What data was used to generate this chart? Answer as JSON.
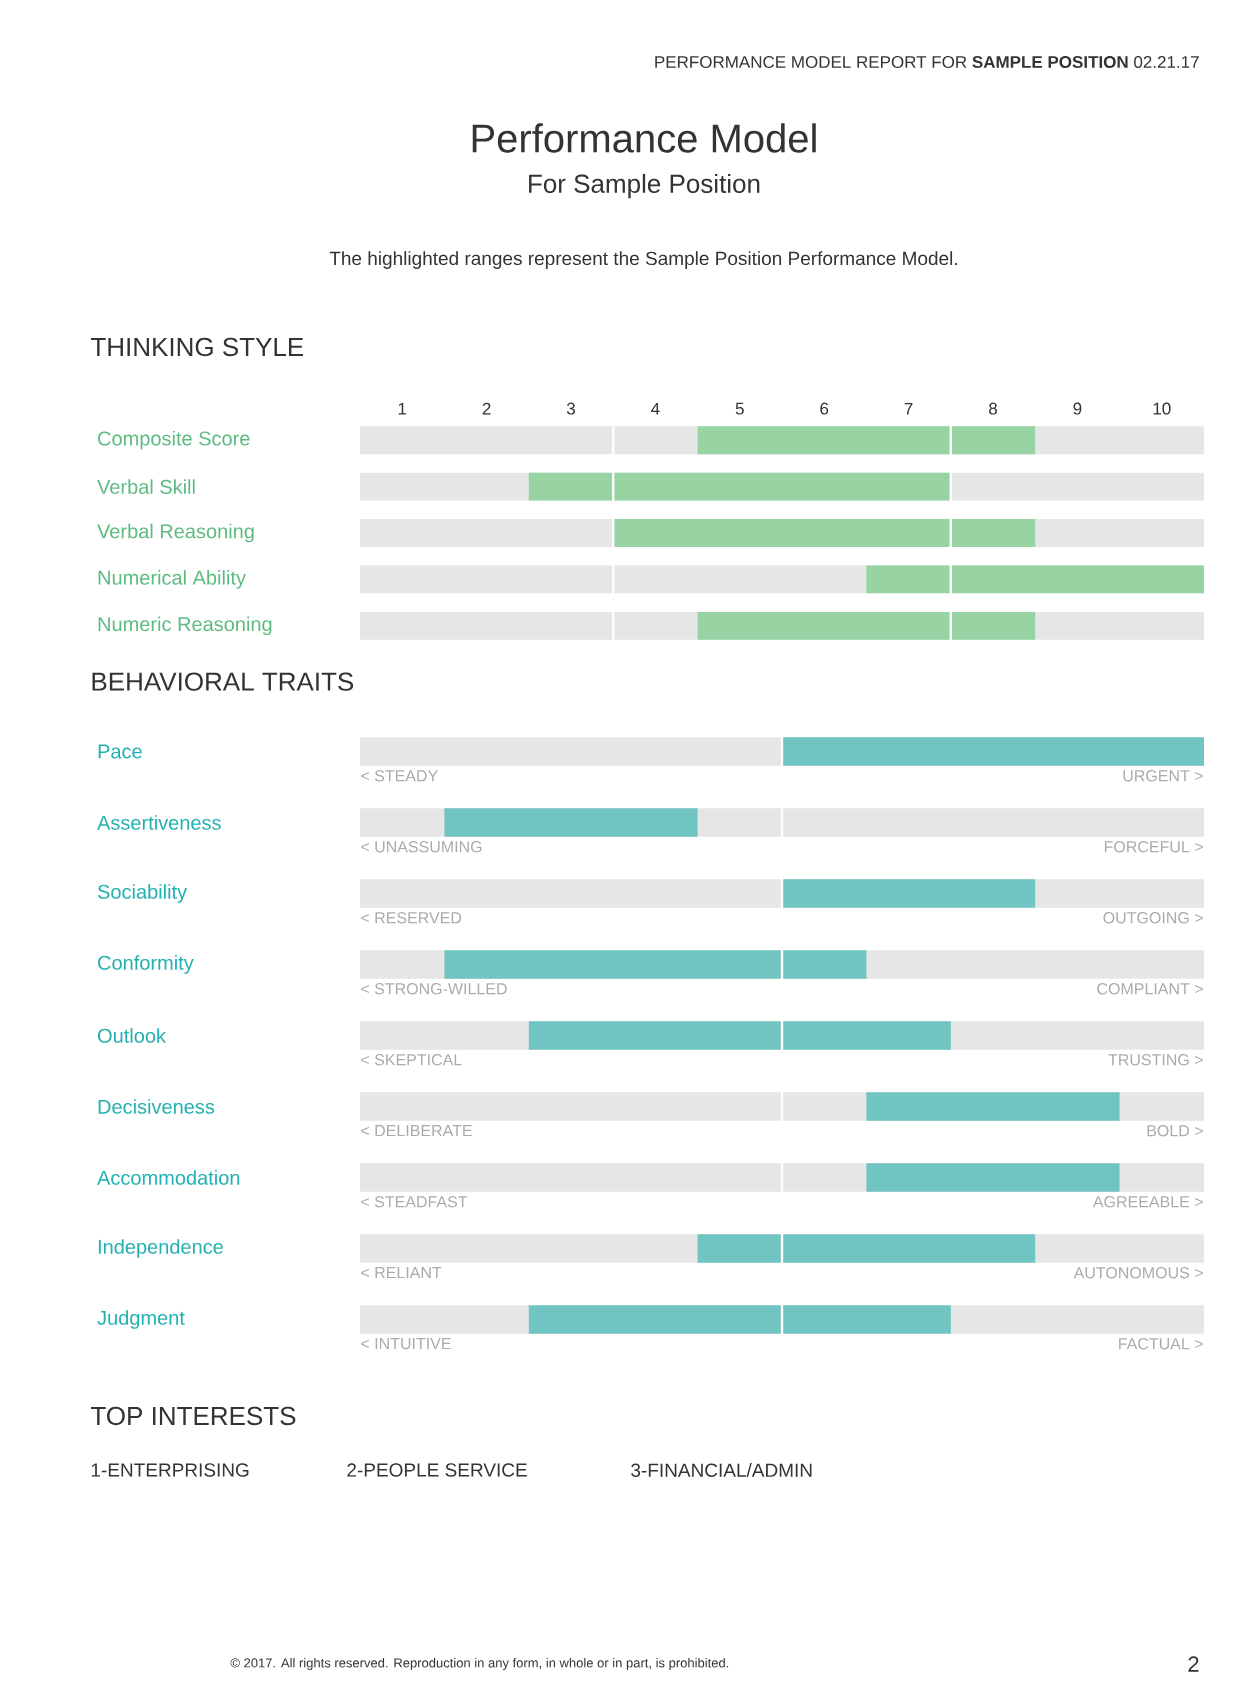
{
  "chart_data": [
    {
      "type": "other",
      "title": "Performance Model",
      "subtitle": "For Sample Position",
      "annotations": [
        "PERFORMANCE MODEL REPORT FOR  **SAMPLE POSITION**  02.21.17",
        "The highlighted ranges represent the Sample Position Performance Model."
      ]
    },
    {
      "type": "bar",
      "orientation": "horizontal",
      "title": "THINKING STYLE",
      "categories": [
        "Composite Score",
        "Verbal Skill",
        "Verbal Reasoning",
        "Numerical Ability",
        "Numeric Reasoning"
      ],
      "base": [
        4.5,
        2.5,
        3.5,
        6.5,
        4.5
      ],
      "values": [
        4,
        5,
        5,
        4,
        4
      ],
      "color": "#97d3a3",
      "xlim": [
        0.5,
        10.5
      ],
      "xticks": [
        1,
        2,
        3,
        4,
        5,
        6,
        7,
        8,
        9,
        10
      ],
      "ref_lines": [
        {
          "axis": "x",
          "value": 3.5,
          "color": "#ffffff"
        },
        {
          "axis": "x",
          "value": 7.5,
          "color": "#ffffff"
        }
      ]
    },
    {
      "type": "bar",
      "orientation": "horizontal",
      "title": "BEHAVIORAL TRAITS",
      "categories": [
        "Pace",
        "Assertiveness",
        "Sociability",
        "Conformity",
        "Outlook",
        "Decisiveness",
        "Accommodation",
        "Independence",
        "Judgment"
      ],
      "base": [
        5.5,
        1.5,
        5.5,
        1.5,
        2.5,
        6.5,
        6.5,
        4.5,
        2.5
      ],
      "values": [
        5,
        3,
        3,
        5,
        5,
        3,
        3,
        4,
        5
      ],
      "color": "#70c4c1",
      "xlim": [
        0.5,
        10.5
      ],
      "tick_labels": "y",
      "ref_lines": [
        {
          "axis": "x",
          "value": 5.5,
          "color": "#ffffff"
        }
      ],
      "annotations": [
        "< STEADY",
        "URGENT >",
        "< UNASSUMING",
        "FORCEFUL >",
        "< RESERVED",
        "OUTGOING >",
        "< STRONG-WILLED",
        "COMPLIANT >",
        "< SKEPTICAL",
        "TRUSTING >",
        "< DELIBERATE",
        "BOLD >",
        "< STEADFAST",
        "AGREEABLE >",
        "< RELIANT",
        "AUTONOMOUS >",
        "< INTUITIVE",
        "FACTUAL >"
      ]
    },
    {
      "type": "other",
      "title": "TOP INTERESTS",
      "annotations": [
        "1-ENTERPRISING",
        "2-PEOPLE SERVICE",
        "3-FINANCIAL/ADMIN",
        "© 2017. All rights reserved. Reproduction in any form, in whole or in part, is prohibited.",
        "2"
      ]
    }
  ]
}
